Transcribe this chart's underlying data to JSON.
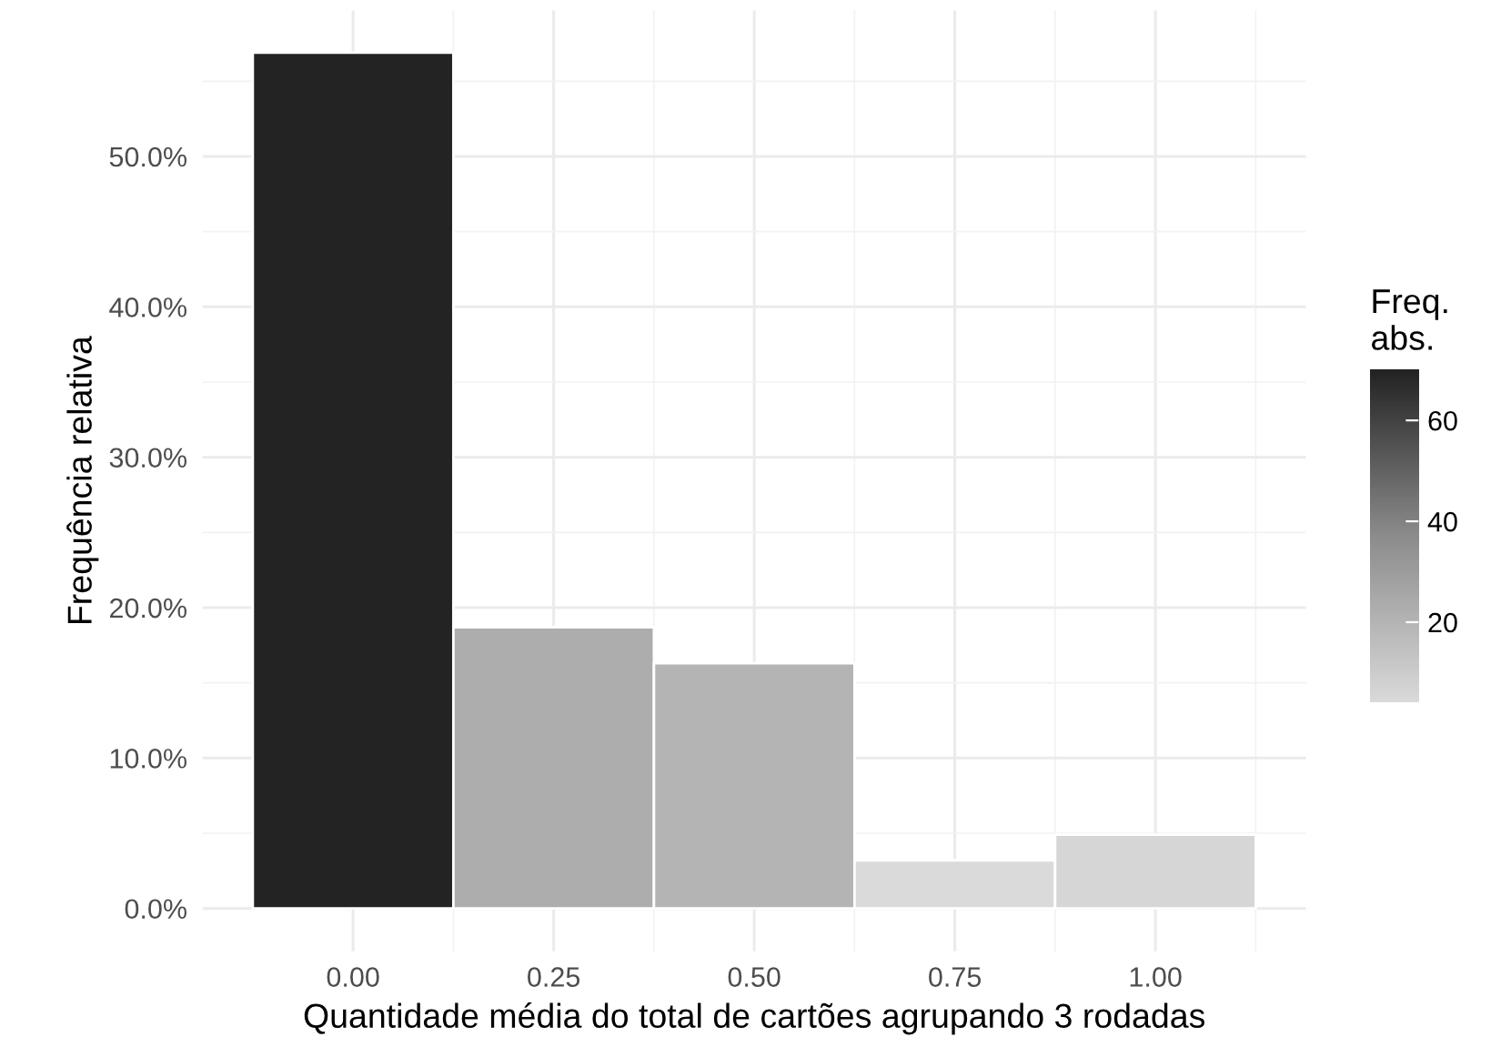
{
  "chart_data": {
    "type": "histogram",
    "xlabel": "Quantidade média do total de cartões agrupando 3 rodadas",
    "ylabel": "Frequência relativa",
    "clabel": "Freq.\nabs.",
    "bins": [
      -0.125,
      0.125,
      0.375,
      0.625,
      0.875,
      1.125
    ],
    "values": [
      56.9,
      18.7,
      16.3,
      3.2,
      4.9
    ],
    "cvalues": [
      70,
      23,
      20,
      4,
      6
    ],
    "clim": [
      4,
      70
    ],
    "cticks": [
      20,
      40,
      60
    ],
    "xlim": [
      -0.1875,
      1.1875
    ],
    "xticks": [
      {
        "value": 0,
        "label": "0.00"
      },
      {
        "value": 0.25,
        "label": "0.25"
      },
      {
        "value": 0.5,
        "label": "0.50"
      },
      {
        "value": 0.75,
        "label": "0.75"
      },
      {
        "value": 1,
        "label": "1.00"
      }
    ],
    "ylim": [
      -2.85,
      59.7
    ],
    "yticks": [
      {
        "value": 0,
        "label": "0.0%"
      },
      {
        "value": 10,
        "label": "10.0%"
      },
      {
        "value": 20,
        "label": "20.0%"
      },
      {
        "value": 30,
        "label": "30.0%"
      },
      {
        "value": 40,
        "label": "40.0%"
      },
      {
        "value": 50,
        "label": "50.0%"
      }
    ],
    "grid": true
  }
}
